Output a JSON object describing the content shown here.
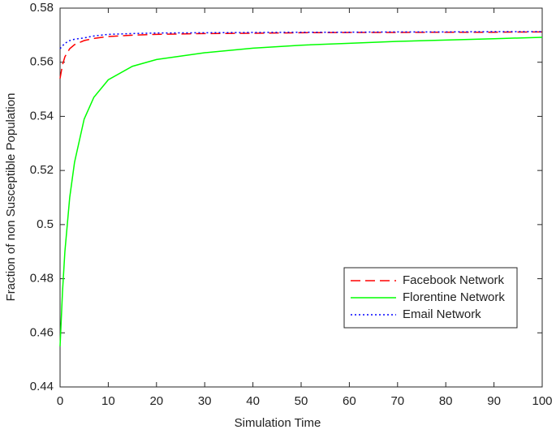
{
  "chart_data": {
    "type": "line",
    "x_label": "Simulation Time",
    "y_label": "Fraction of non Susceptible Population",
    "x": [
      0,
      0.5,
      1,
      2,
      3,
      5,
      7,
      10,
      15,
      20,
      30,
      40,
      50,
      60,
      70,
      80,
      90,
      100
    ],
    "series": [
      {
        "name": "Facebook Network",
        "color": "#ff0000",
        "line_style": "dashed",
        "values": [
          0.554,
          0.559,
          0.562,
          0.565,
          0.5665,
          0.568,
          0.5688,
          0.5695,
          0.57,
          0.5703,
          0.5706,
          0.5707,
          0.5709,
          0.571,
          0.571,
          0.5711,
          0.5711,
          0.5712
        ]
      },
      {
        "name": "Florentine Network",
        "color": "#00ff00",
        "line_style": "solid",
        "values": [
          0.455,
          0.475,
          0.49,
          0.51,
          0.523,
          0.539,
          0.547,
          0.5535,
          0.5585,
          0.561,
          0.5635,
          0.5652,
          0.5663,
          0.567,
          0.5677,
          0.5682,
          0.5687,
          0.5692
        ]
      },
      {
        "name": "Email Network",
        "color": "#0000ff",
        "line_style": "dotted",
        "values": [
          0.565,
          0.566,
          0.567,
          0.568,
          0.5685,
          0.569,
          0.5697,
          0.5703,
          0.5706,
          0.5708,
          0.5709,
          0.571,
          0.5711,
          0.5711,
          0.5712,
          0.5712,
          0.5713,
          0.5713
        ]
      }
    ],
    "xlim": [
      0,
      100
    ],
    "xticks": [
      0,
      10,
      20,
      30,
      40,
      50,
      60,
      70,
      80,
      90,
      100
    ],
    "ylim": [
      0.44,
      0.58
    ],
    "yticks": [
      0.44,
      0.46,
      0.48,
      0.5,
      0.52,
      0.54,
      0.56,
      0.58
    ],
    "grid": false,
    "legend": "lower right"
  }
}
